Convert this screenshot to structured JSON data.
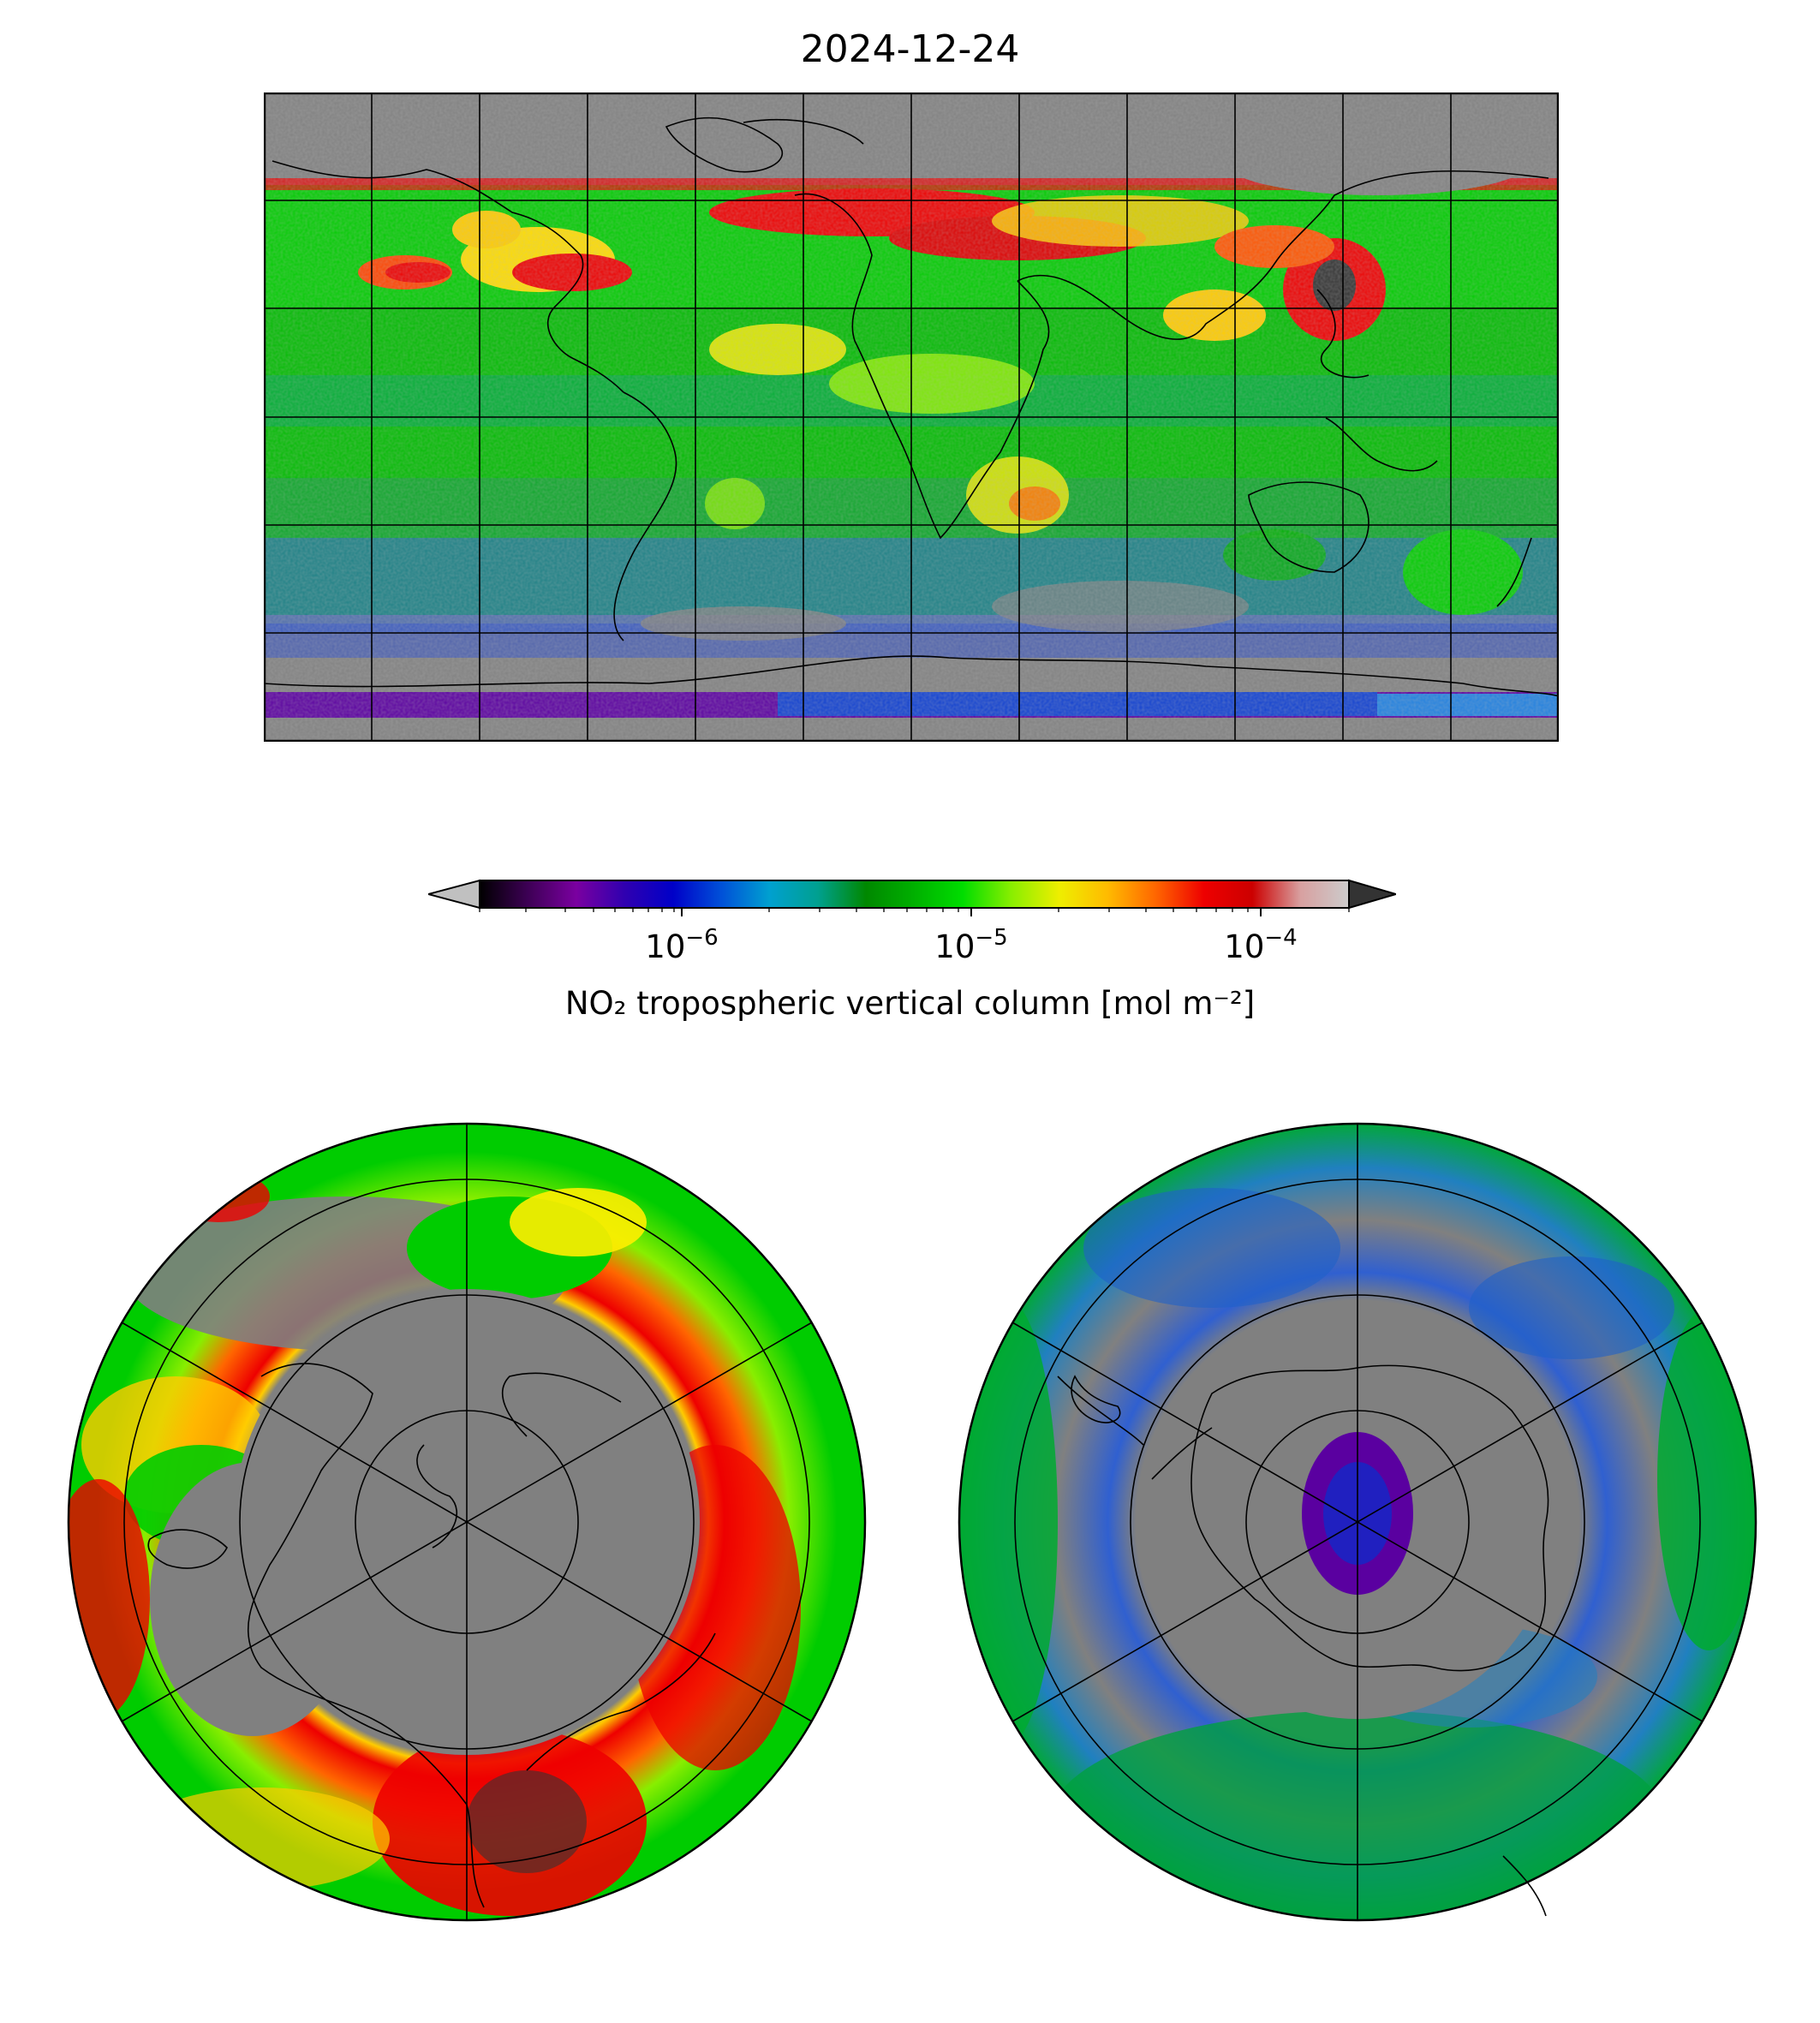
{
  "figure": {
    "title": "2024-12-24"
  },
  "colorbar": {
    "label": "NO₂ tropospheric vertical column [mol m⁻²]",
    "scale": "log",
    "extend": "both",
    "ticks": [
      {
        "base": "10",
        "exp": "−6"
      },
      {
        "base": "10",
        "exp": "−5"
      },
      {
        "base": "10",
        "exp": "−4"
      }
    ],
    "colors": [
      "#000000",
      "#3d0055",
      "#7a00a0",
      "#3000b0",
      "#0000c8",
      "#0050d8",
      "#00a0d0",
      "#00a090",
      "#008800",
      "#00b000",
      "#00dd00",
      "#88ee00",
      "#eeee00",
      "#ffbb00",
      "#ff6600",
      "#ee0000",
      "#cc0000",
      "#d8a0a0",
      "#cccccc"
    ],
    "under_color": "#c0c0c0",
    "over_color": "#333333"
  },
  "maps": {
    "top": {
      "projection": "PlateCarree",
      "nodata_color": "#808080"
    },
    "north": {
      "projection": "NorthPolarStereo",
      "nodata_color": "#808080"
    },
    "south": {
      "projection": "SouthPolarStereo",
      "nodata_color": "#808080"
    }
  }
}
